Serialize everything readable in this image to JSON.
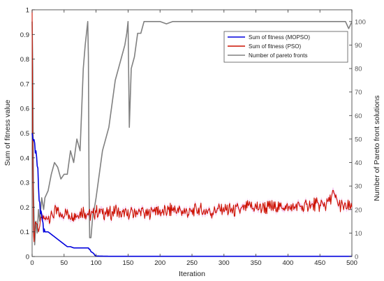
{
  "chart_data": {
    "type": "line",
    "title": "",
    "xlabel": "Iteration",
    "ylabel_left": "Sum of fitness value",
    "ylabel_right": "Number of Pareto front solutions",
    "xlim": [
      0,
      500
    ],
    "ylim_left": [
      0,
      1
    ],
    "ylim_right": [
      0,
      105
    ],
    "x_ticks": [
      "0",
      "50",
      "100",
      "150",
      "200",
      "250",
      "300",
      "350",
      "400",
      "450",
      "500"
    ],
    "y_left_ticks": [
      "0",
      "0.1",
      "0.2",
      "0.3",
      "0.4",
      "0.5",
      "0.6",
      "0.7",
      "0.8",
      "0.9",
      "1"
    ],
    "y_right_ticks": [
      "0",
      "10",
      "20",
      "30",
      "40",
      "50",
      "60",
      "70",
      "80",
      "90",
      "100"
    ],
    "grid": false,
    "legend_position": "top-right",
    "colors": {
      "mopso": "#0000dd",
      "pso": "#cc1100",
      "pso_shade": "#f2b8ee",
      "pareto": "#808080"
    },
    "series": [
      {
        "name": "Sum of fitness (MOPSO)",
        "axis": "left",
        "x": [
          0,
          1,
          2,
          3,
          4,
          5,
          7,
          9,
          10,
          12,
          15,
          18,
          20,
          25,
          30,
          35,
          40,
          45,
          50,
          55,
          60,
          65,
          70,
          75,
          80,
          85,
          88,
          89,
          90,
          92,
          95,
          97,
          98,
          100,
          120,
          150,
          200,
          300,
          400,
          500
        ],
        "y": [
          0.5,
          0.48,
          0.47,
          0.46,
          0.44,
          0.42,
          0.4,
          0.35,
          0.3,
          0.2,
          0.15,
          0.12,
          0.1,
          0.1,
          0.09,
          0.08,
          0.07,
          0.06,
          0.05,
          0.04,
          0.04,
          0.035,
          0.035,
          0.035,
          0.035,
          0.035,
          0.035,
          0.03,
          0.03,
          0.02,
          0.015,
          0.01,
          0.005,
          0.002,
          0.001,
          0.001,
          0.001,
          0.001,
          0.001,
          0.001
        ]
      },
      {
        "name": "Sum of fitness (PSO)",
        "axis": "left",
        "x": [
          0,
          1,
          2,
          3,
          5,
          8,
          10,
          15,
          20,
          25,
          30,
          35,
          40,
          45,
          50,
          60,
          70,
          80,
          90,
          100,
          110,
          120,
          130,
          140,
          150,
          160,
          170,
          180,
          190,
          200,
          220,
          240,
          260,
          280,
          300,
          320,
          340,
          360,
          380,
          400,
          420,
          440,
          460,
          470,
          480,
          490,
          500
        ],
        "y": [
          1.0,
          0.4,
          0.1,
          0.06,
          0.14,
          0.13,
          0.1,
          0.16,
          0.15,
          0.17,
          0.16,
          0.18,
          0.18,
          0.16,
          0.18,
          0.17,
          0.17,
          0.18,
          0.17,
          0.18,
          0.18,
          0.17,
          0.19,
          0.17,
          0.17,
          0.18,
          0.18,
          0.17,
          0.19,
          0.18,
          0.19,
          0.18,
          0.19,
          0.18,
          0.19,
          0.19,
          0.2,
          0.2,
          0.2,
          0.2,
          0.2,
          0.21,
          0.21,
          0.25,
          0.21,
          0.2,
          0.2
        ]
      },
      {
        "name": "Number of pareto fronts",
        "axis": "right",
        "x": [
          0,
          1,
          2,
          4,
          6,
          8,
          10,
          12,
          15,
          18,
          20,
          25,
          30,
          35,
          40,
          45,
          50,
          55,
          60,
          65,
          70,
          75,
          80,
          83,
          85,
          87,
          88,
          89,
          90,
          92,
          95,
          97,
          100,
          105,
          110,
          115,
          120,
          125,
          130,
          135,
          140,
          145,
          148,
          150,
          152,
          155,
          160,
          165,
          170,
          175,
          180,
          190,
          200,
          210,
          220,
          230,
          250,
          300,
          350,
          400,
          450,
          470,
          480,
          490,
          495,
          500
        ],
        "y": [
          100,
          80,
          30,
          5,
          15,
          10,
          20,
          15,
          25,
          20,
          25,
          28,
          35,
          40,
          38,
          33,
          35,
          35,
          45,
          40,
          50,
          45,
          80,
          90,
          95,
          100,
          85,
          30,
          8,
          8,
          18,
          20,
          25,
          35,
          45,
          50,
          55,
          65,
          75,
          80,
          85,
          90,
          95,
          100,
          55,
          80,
          85,
          95,
          95,
          100,
          100,
          100,
          100,
          99,
          100,
          100,
          100,
          100,
          100,
          100,
          100,
          100,
          100,
          100,
          97,
          100
        ]
      }
    ]
  }
}
